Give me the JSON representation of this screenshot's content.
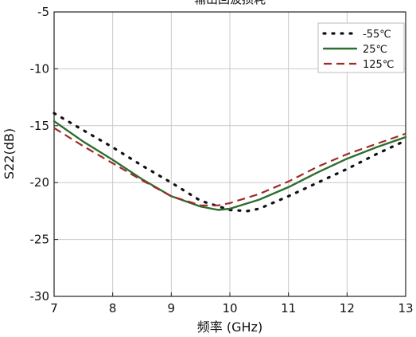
{
  "chart_data": {
    "type": "line",
    "title": "输出回波损耗",
    "xlabel": "频率 (GHz)",
    "ylabel": "S22(dB)",
    "xlim": [
      7,
      13
    ],
    "ylim": [
      -30,
      -5
    ],
    "xticks": [
      "7",
      "8",
      "9",
      "10",
      "11",
      "12",
      "13"
    ],
    "yticks": [
      "-5",
      "-10",
      "-15",
      "-20",
      "-25",
      "-30"
    ],
    "grid": true,
    "legend_position": "top-right",
    "series": [
      {
        "name": "-55℃",
        "color": "#111111",
        "style": "dotted",
        "x": [
          7.0,
          7.5,
          8.0,
          8.5,
          9.0,
          9.5,
          10.0,
          10.3,
          10.5,
          11.0,
          11.5,
          12.0,
          12.5,
          13.0
        ],
        "y": [
          -13.9,
          -15.4,
          -16.9,
          -18.5,
          -20.0,
          -21.6,
          -22.4,
          -22.5,
          -22.3,
          -21.2,
          -20.0,
          -18.8,
          -17.5,
          -16.3
        ]
      },
      {
        "name": "25℃",
        "color": "#2e6e2e",
        "style": "solid",
        "x": [
          7.0,
          7.5,
          8.0,
          8.5,
          9.0,
          9.5,
          9.8,
          10.0,
          10.5,
          11.0,
          11.5,
          12.0,
          12.5,
          13.0
        ],
        "y": [
          -14.6,
          -16.4,
          -18.0,
          -19.7,
          -21.2,
          -22.1,
          -22.4,
          -22.3,
          -21.5,
          -20.4,
          -19.1,
          -17.9,
          -16.9,
          -16.0
        ]
      },
      {
        "name": "125℃",
        "color": "#9e2a2a",
        "style": "dashed",
        "x": [
          7.0,
          7.5,
          8.0,
          8.5,
          9.0,
          9.5,
          9.8,
          10.0,
          10.5,
          11.0,
          11.5,
          12.0,
          12.5,
          13.0
        ],
        "y": [
          -15.2,
          -16.8,
          -18.3,
          -19.8,
          -21.2,
          -22.0,
          -22.0,
          -21.8,
          -21.0,
          -19.9,
          -18.6,
          -17.5,
          -16.6,
          -15.7
        ]
      }
    ]
  }
}
